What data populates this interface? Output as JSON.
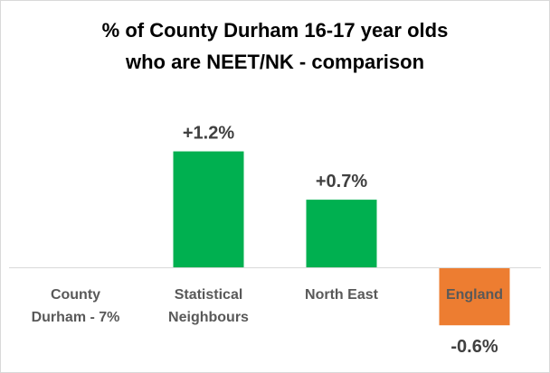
{
  "chart_data": {
    "type": "bar",
    "title_lines": [
      "% of County Durham 16-17 year olds",
      "who are NEET/NK - comparison"
    ],
    "categories": [
      [
        "County",
        "Durham - 7%"
      ],
      [
        "Statistical",
        "Neighbours"
      ],
      [
        "North East"
      ],
      [
        "England"
      ]
    ],
    "values": [
      0,
      1.2,
      0.7,
      -0.6
    ],
    "data_labels": [
      "",
      "+1.2%",
      "+0.7%",
      "-0.6%"
    ],
    "ylim": [
      -0.6,
      1.5
    ],
    "grid": false,
    "legend": "none",
    "colors": {
      "positive": "#00b050",
      "negative": "#ed7d31",
      "axis": "#d9d9d9",
      "data_label": "#404040",
      "category_label": "#595959",
      "negative_category_label": "#ffffff"
    }
  }
}
